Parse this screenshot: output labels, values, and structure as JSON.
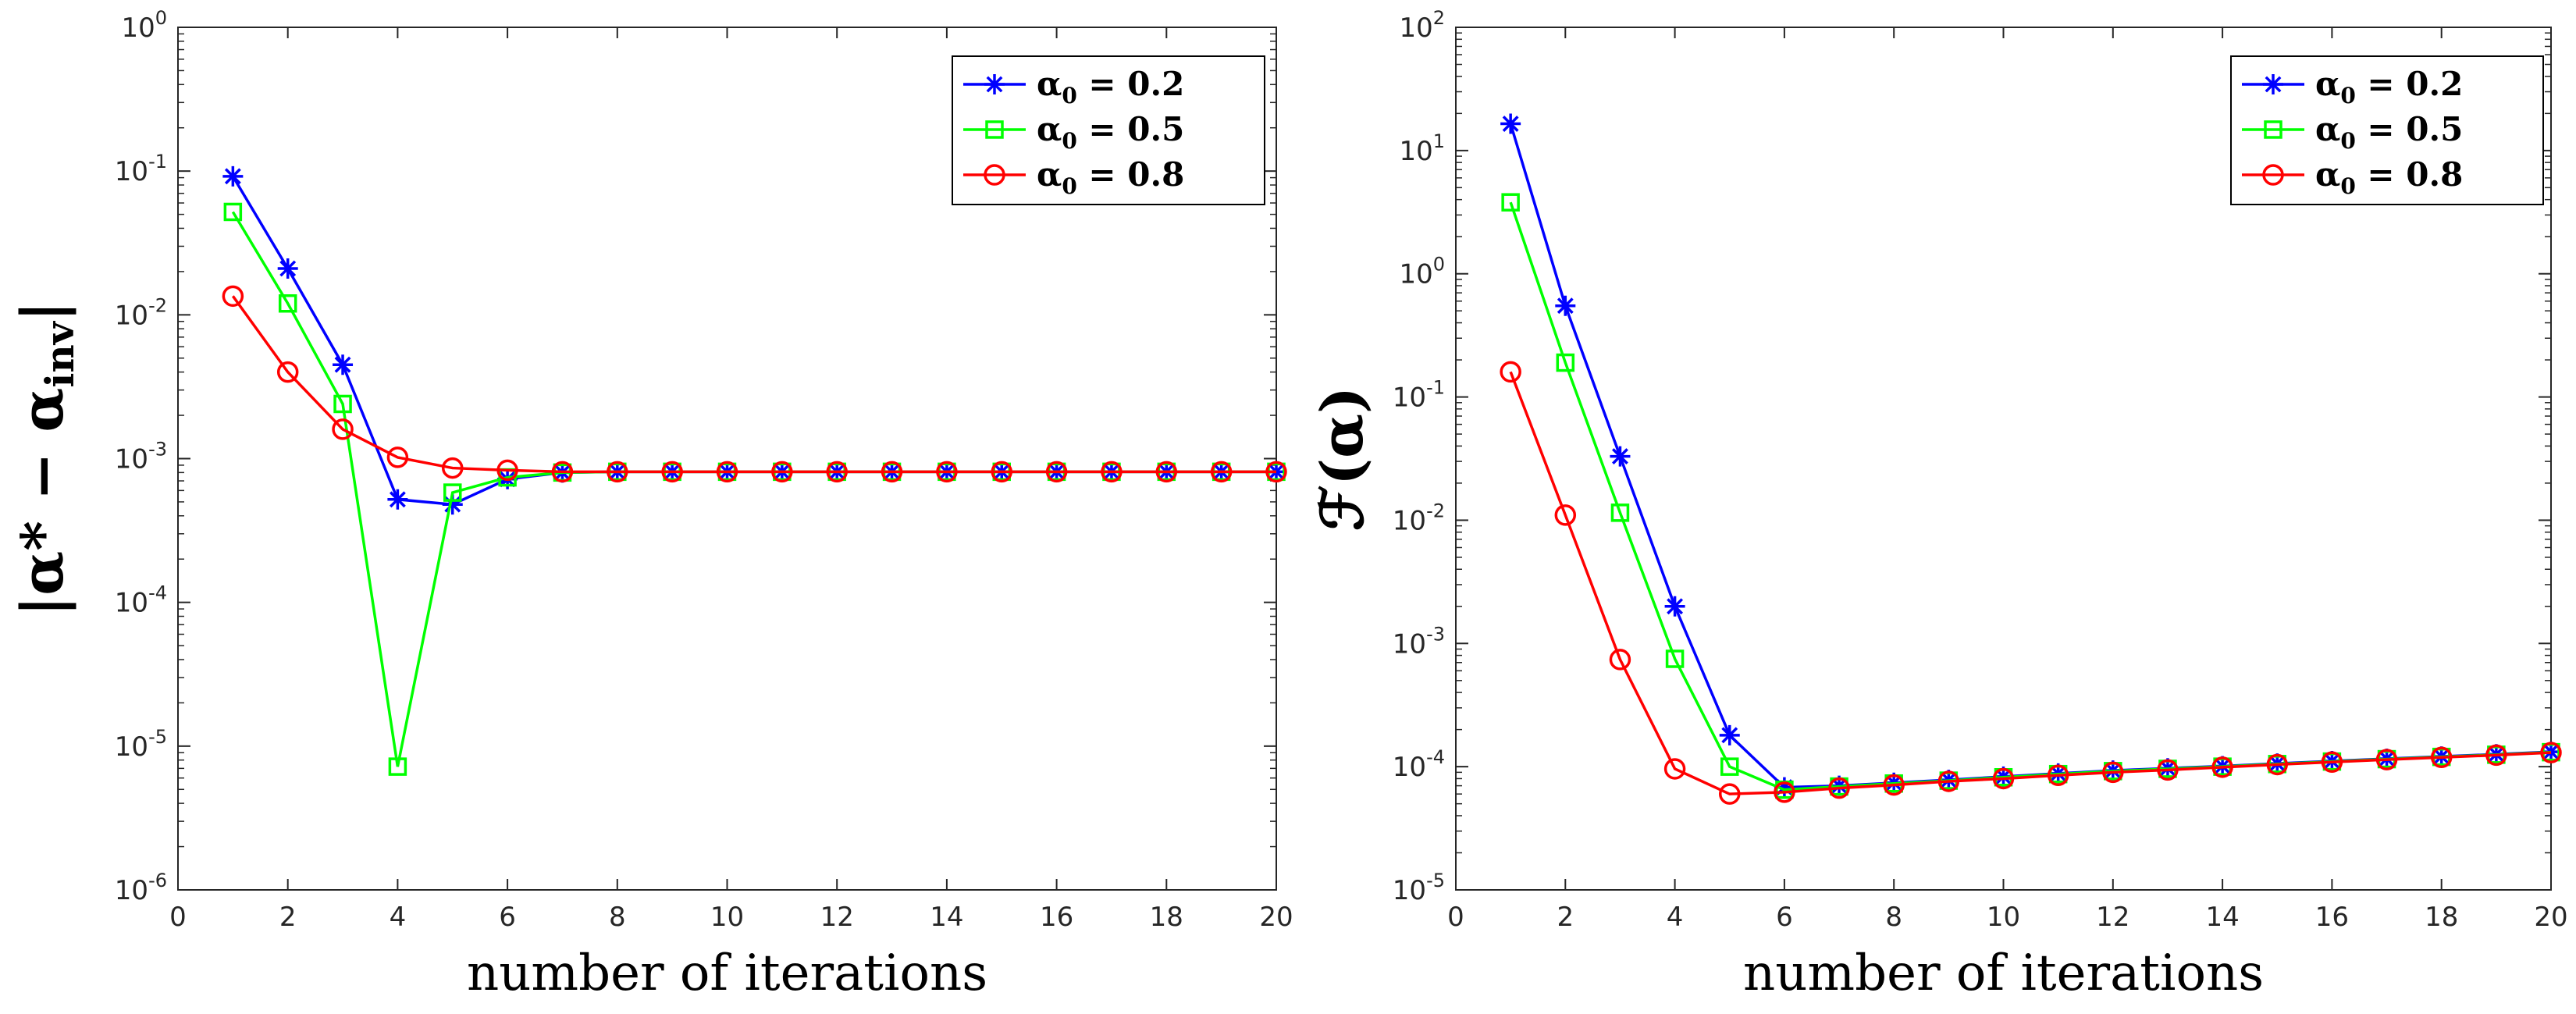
{
  "chart_data": [
    {
      "type": "line",
      "panel": "left",
      "yscale": "log",
      "xlabel": "number of iterations",
      "ylabel": {
        "text": "|α* − α",
        "subscript": "inv",
        "suffix": "|"
      },
      "xlim": [
        0,
        20
      ],
      "ylim": [
        1e-06,
        1
      ],
      "xticks": [
        0,
        2,
        4,
        6,
        8,
        10,
        12,
        14,
        16,
        18,
        20
      ],
      "yticks": [
        {
          "base": "10",
          "exp": "-6",
          "value": 1e-06
        },
        {
          "base": "10",
          "exp": "-5",
          "value": 1e-05
        },
        {
          "base": "10",
          "exp": "-4",
          "value": 0.0001
        },
        {
          "base": "10",
          "exp": "-3",
          "value": 0.001
        },
        {
          "base": "10",
          "exp": "-2",
          "value": 0.01
        },
        {
          "base": "10",
          "exp": "-1",
          "value": 0.1
        },
        {
          "base": "10",
          "exp": "0",
          "value": 1
        }
      ],
      "legend_position": "top-right",
      "x": [
        1,
        2,
        3,
        4,
        5,
        6,
        7,
        8,
        9,
        10,
        11,
        12,
        13,
        14,
        15,
        16,
        17,
        18,
        19,
        20
      ],
      "series": [
        {
          "name": "α0 = 0.2",
          "label_main": "α",
          "label_sub": "0",
          "label_rest": " = 0.2",
          "color": "#0000ff",
          "marker": "star",
          "values": [
            0.092,
            0.021,
            0.0045,
            0.00052,
            0.00048,
            0.00072,
            0.0008,
            0.00081,
            0.00081,
            0.00081,
            0.00081,
            0.00081,
            0.00081,
            0.00081,
            0.00081,
            0.00081,
            0.00081,
            0.00081,
            0.00081,
            0.00081
          ]
        },
        {
          "name": "α0 = 0.5",
          "label_main": "α",
          "label_sub": "0",
          "label_rest": " = 0.5",
          "color": "#00ff00",
          "marker": "square",
          "values": [
            0.052,
            0.012,
            0.0024,
            7.2e-06,
            0.00058,
            0.00074,
            0.0008,
            0.00081,
            0.00081,
            0.00081,
            0.00081,
            0.00081,
            0.00081,
            0.00081,
            0.00081,
            0.00081,
            0.00081,
            0.00081,
            0.00081,
            0.00081
          ]
        },
        {
          "name": "α0 = 0.8",
          "label_main": "α",
          "label_sub": "0",
          "label_rest": " = 0.8",
          "color": "#ff0000",
          "marker": "circle",
          "values": [
            0.0135,
            0.004,
            0.0016,
            0.00102,
            0.00086,
            0.00083,
            0.00081,
            0.00081,
            0.00081,
            0.00081,
            0.00081,
            0.00081,
            0.00081,
            0.00081,
            0.00081,
            0.00081,
            0.00081,
            0.00081,
            0.00081,
            0.00081
          ]
        }
      ]
    },
    {
      "type": "line",
      "panel": "right",
      "yscale": "log",
      "xlabel": "number of iterations",
      "ylabel": {
        "text": "ℱ(α)",
        "subscript": "",
        "suffix": ""
      },
      "xlim": [
        0,
        20
      ],
      "ylim": [
        1e-05,
        100
      ],
      "xticks": [
        0,
        2,
        4,
        6,
        8,
        10,
        12,
        14,
        16,
        18,
        20
      ],
      "yticks": [
        {
          "base": "10",
          "exp": "-5",
          "value": 1e-05
        },
        {
          "base": "10",
          "exp": "-4",
          "value": 0.0001
        },
        {
          "base": "10",
          "exp": "-3",
          "value": 0.001
        },
        {
          "base": "10",
          "exp": "-2",
          "value": 0.01
        },
        {
          "base": "10",
          "exp": "-1",
          "value": 0.1
        },
        {
          "base": "10",
          "exp": "0",
          "value": 1
        },
        {
          "base": "10",
          "exp": "1",
          "value": 10
        },
        {
          "base": "10",
          "exp": "2",
          "value": 100
        }
      ],
      "legend_position": "top-right",
      "x": [
        1,
        2,
        3,
        4,
        5,
        6,
        7,
        8,
        9,
        10,
        11,
        12,
        13,
        14,
        15,
        16,
        17,
        18,
        19,
        20
      ],
      "series": [
        {
          "name": "α0 = 0.2",
          "label_main": "α",
          "label_sub": "0",
          "label_rest": " = 0.2",
          "color": "#0000ff",
          "marker": "star",
          "values": [
            16.5,
            0.55,
            0.033,
            0.002,
            0.00018,
            6.8e-05,
            7e-05,
            7.4e-05,
            7.8e-05,
            8.3e-05,
            8.8e-05,
            9.3e-05,
            9.7e-05,
            0.000101,
            0.000106,
            0.000111,
            0.000116,
            0.000121,
            0.000126,
            0.000132
          ]
        },
        {
          "name": "α0 = 0.5",
          "label_main": "α",
          "label_sub": "0",
          "label_rest": " = 0.5",
          "color": "#00ff00",
          "marker": "square",
          "values": [
            3.8,
            0.19,
            0.0115,
            0.00075,
            0.0001,
            6.5e-05,
            6.9e-05,
            7.3e-05,
            7.7e-05,
            8.2e-05,
            8.7e-05,
            9.2e-05,
            9.6e-05,
            0.0001,
            0.000105,
            0.00011,
            0.000115,
            0.00012,
            0.000125,
            0.000131
          ]
        },
        {
          "name": "α0 = 0.8",
          "label_main": "α",
          "label_sub": "0",
          "label_rest": " = 0.8",
          "color": "#ff0000",
          "marker": "circle",
          "values": [
            0.16,
            0.011,
            0.00074,
            9.6e-05,
            6e-05,
            6.2e-05,
            6.7e-05,
            7.1e-05,
            7.6e-05,
            8e-05,
            8.5e-05,
            9e-05,
            9.4e-05,
            9.9e-05,
            0.000104,
            0.000109,
            0.000114,
            0.000119,
            0.000124,
            0.00013
          ]
        }
      ]
    }
  ]
}
